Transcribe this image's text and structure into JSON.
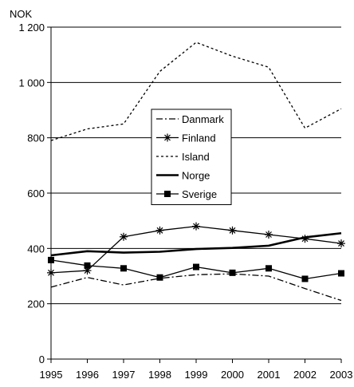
{
  "chart_data": {
    "type": "line",
    "ylabel": "NOK",
    "ylim": [
      0,
      1200
    ],
    "yticks": [
      0,
      200,
      400,
      600,
      800,
      1000,
      1200
    ],
    "ytick_labels": [
      "0",
      "200",
      "400",
      "600",
      "800",
      "1 000",
      "1 200"
    ],
    "x": [
      "1995",
      "1996",
      "1997",
      "1998",
      "1999",
      "2000",
      "2001",
      "2002",
      "2003"
    ],
    "grid": "horizontal",
    "legend_position": "center",
    "series": [
      {
        "name": "Danmark",
        "style": "dashdot",
        "marker": "none",
        "color": "#000000",
        "values": [
          260,
          295,
          268,
          292,
          305,
          308,
          300,
          255,
          212
        ]
      },
      {
        "name": "Finland",
        "style": "solid",
        "marker": "asterisk",
        "color": "#000000",
        "values": [
          312,
          320,
          442,
          465,
          480,
          465,
          450,
          435,
          418
        ]
      },
      {
        "name": "Island",
        "style": "dotted",
        "marker": "none",
        "color": "#000000",
        "values": [
          790,
          832,
          850,
          1040,
          1145,
          1095,
          1055,
          835,
          905
        ]
      },
      {
        "name": "Norge",
        "style": "thick",
        "marker": "none",
        "color": "#000000",
        "values": [
          375,
          390,
          385,
          388,
          398,
          402,
          410,
          440,
          455
        ]
      },
      {
        "name": "Sverige",
        "style": "solid",
        "marker": "square",
        "color": "#000000",
        "values": [
          358,
          338,
          328,
          295,
          333,
          312,
          328,
          290,
          310
        ]
      }
    ]
  }
}
